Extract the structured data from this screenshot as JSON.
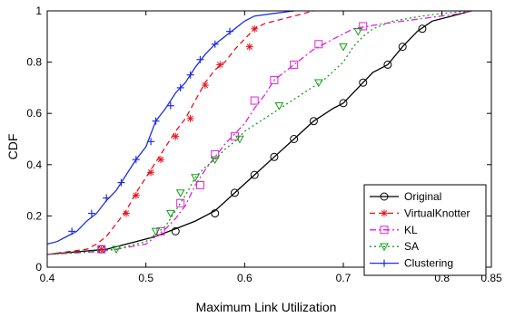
{
  "chart_data": {
    "type": "line",
    "xlabel": "Maximum Link Utilization",
    "ylabel": "CDF",
    "xlim": [
      0.4,
      0.85
    ],
    "ylim": [
      0,
      1
    ],
    "xticks": [
      0.4,
      0.5,
      0.6,
      0.7,
      0.8,
      0.85
    ],
    "xtick_labels": [
      "0.4",
      "0.5",
      "0.6",
      "0.7",
      "0.8",
      "0.85"
    ],
    "yticks": [
      0,
      0.2,
      0.4,
      0.6,
      0.8,
      1
    ],
    "ytick_labels": [
      "0",
      "0.2",
      "0.4",
      "0.6",
      "0.8",
      "1"
    ],
    "grid": false,
    "legend_position": "bottom-right",
    "series": [
      {
        "name": "Original",
        "color": "#000000",
        "dash": "solid",
        "marker": "circle",
        "points": [
          [
            0.4,
            0.05
          ],
          [
            0.43,
            0.06
          ],
          [
            0.46,
            0.07
          ],
          [
            0.49,
            0.1
          ],
          [
            0.51,
            0.12
          ],
          [
            0.53,
            0.15
          ],
          [
            0.55,
            0.18
          ],
          [
            0.57,
            0.22
          ],
          [
            0.59,
            0.29
          ],
          [
            0.61,
            0.36
          ],
          [
            0.63,
            0.43
          ],
          [
            0.65,
            0.5
          ],
          [
            0.67,
            0.57
          ],
          [
            0.69,
            0.62
          ],
          [
            0.7,
            0.64
          ],
          [
            0.71,
            0.68
          ],
          [
            0.72,
            0.72
          ],
          [
            0.73,
            0.76
          ],
          [
            0.745,
            0.79
          ],
          [
            0.76,
            0.86
          ],
          [
            0.775,
            0.92
          ],
          [
            0.79,
            0.96
          ],
          [
            0.81,
            0.98
          ],
          [
            0.83,
            1.0
          ]
        ],
        "markers": [
          [
            0.455,
            0.07
          ],
          [
            0.53,
            0.14
          ],
          [
            0.57,
            0.21
          ],
          [
            0.59,
            0.29
          ],
          [
            0.61,
            0.36
          ],
          [
            0.63,
            0.43
          ],
          [
            0.65,
            0.5
          ],
          [
            0.67,
            0.57
          ],
          [
            0.7,
            0.64
          ],
          [
            0.72,
            0.72
          ],
          [
            0.745,
            0.79
          ],
          [
            0.76,
            0.86
          ],
          [
            0.78,
            0.93
          ]
        ]
      },
      {
        "name": "VirtualKnotter",
        "color": "#e8131c",
        "dash": "6,4",
        "marker": "asterisk",
        "points": [
          [
            0.4,
            0.05
          ],
          [
            0.42,
            0.06
          ],
          [
            0.44,
            0.07
          ],
          [
            0.45,
            0.09
          ],
          [
            0.46,
            0.12
          ],
          [
            0.47,
            0.17
          ],
          [
            0.48,
            0.22
          ],
          [
            0.49,
            0.29
          ],
          [
            0.5,
            0.35
          ],
          [
            0.51,
            0.41
          ],
          [
            0.52,
            0.47
          ],
          [
            0.53,
            0.53
          ],
          [
            0.54,
            0.58
          ],
          [
            0.55,
            0.65
          ],
          [
            0.56,
            0.72
          ],
          [
            0.57,
            0.77
          ],
          [
            0.58,
            0.8
          ],
          [
            0.59,
            0.85
          ],
          [
            0.6,
            0.89
          ],
          [
            0.61,
            0.93
          ],
          [
            0.62,
            0.95
          ],
          [
            0.63,
            0.96
          ],
          [
            0.65,
            0.98
          ],
          [
            0.67,
            1.0
          ]
        ],
        "markers": [
          [
            0.455,
            0.07
          ],
          [
            0.48,
            0.21
          ],
          [
            0.49,
            0.28
          ],
          [
            0.505,
            0.37
          ],
          [
            0.515,
            0.42
          ],
          [
            0.53,
            0.51
          ],
          [
            0.545,
            0.58
          ],
          [
            0.56,
            0.71
          ],
          [
            0.575,
            0.79
          ],
          [
            0.605,
            0.86
          ],
          [
            0.61,
            0.93
          ]
        ]
      },
      {
        "name": "KL",
        "color": "#e020e0",
        "dash": "7,3,2,3",
        "marker": "square",
        "points": [
          [
            0.4,
            0.05
          ],
          [
            0.45,
            0.06
          ],
          [
            0.47,
            0.07
          ],
          [
            0.5,
            0.09
          ],
          [
            0.51,
            0.12
          ],
          [
            0.52,
            0.15
          ],
          [
            0.53,
            0.19
          ],
          [
            0.54,
            0.24
          ],
          [
            0.55,
            0.32
          ],
          [
            0.56,
            0.38
          ],
          [
            0.57,
            0.43
          ],
          [
            0.58,
            0.48
          ],
          [
            0.59,
            0.52
          ],
          [
            0.6,
            0.56
          ],
          [
            0.61,
            0.62
          ],
          [
            0.62,
            0.67
          ],
          [
            0.63,
            0.73
          ],
          [
            0.65,
            0.79
          ],
          [
            0.67,
            0.85
          ],
          [
            0.69,
            0.89
          ],
          [
            0.71,
            0.93
          ],
          [
            0.74,
            0.95
          ],
          [
            0.78,
            0.97
          ],
          [
            0.82,
            0.99
          ],
          [
            0.83,
            1.0
          ]
        ],
        "markers": [
          [
            0.455,
            0.07
          ],
          [
            0.515,
            0.14
          ],
          [
            0.535,
            0.25
          ],
          [
            0.555,
            0.32
          ],
          [
            0.57,
            0.44
          ],
          [
            0.59,
            0.51
          ],
          [
            0.61,
            0.65
          ],
          [
            0.63,
            0.73
          ],
          [
            0.65,
            0.79
          ],
          [
            0.675,
            0.87
          ],
          [
            0.72,
            0.94
          ]
        ]
      },
      {
        "name": "SA",
        "color": "#12a012",
        "dash": "2,3",
        "marker": "triangle",
        "points": [
          [
            0.4,
            0.05
          ],
          [
            0.44,
            0.06
          ],
          [
            0.47,
            0.07
          ],
          [
            0.5,
            0.1
          ],
          [
            0.52,
            0.16
          ],
          [
            0.53,
            0.22
          ],
          [
            0.54,
            0.28
          ],
          [
            0.55,
            0.35
          ],
          [
            0.56,
            0.39
          ],
          [
            0.57,
            0.42
          ],
          [
            0.58,
            0.46
          ],
          [
            0.59,
            0.49
          ],
          [
            0.6,
            0.53
          ],
          [
            0.62,
            0.58
          ],
          [
            0.64,
            0.63
          ],
          [
            0.66,
            0.68
          ],
          [
            0.68,
            0.73
          ],
          [
            0.7,
            0.8
          ],
          [
            0.71,
            0.86
          ],
          [
            0.72,
            0.9
          ],
          [
            0.73,
            0.93
          ],
          [
            0.75,
            0.96
          ],
          [
            0.78,
            0.98
          ],
          [
            0.8,
            0.99
          ],
          [
            0.83,
            1.0
          ]
        ],
        "markers": [
          [
            0.47,
            0.07
          ],
          [
            0.51,
            0.14
          ],
          [
            0.525,
            0.21
          ],
          [
            0.535,
            0.29
          ],
          [
            0.55,
            0.35
          ],
          [
            0.57,
            0.42
          ],
          [
            0.595,
            0.5
          ],
          [
            0.635,
            0.63
          ],
          [
            0.675,
            0.72
          ],
          [
            0.7,
            0.86
          ],
          [
            0.715,
            0.92
          ]
        ]
      },
      {
        "name": "Clustering",
        "color": "#1f2fe0",
        "dash": "solid",
        "marker": "plus",
        "points": [
          [
            0.4,
            0.09
          ],
          [
            0.41,
            0.1
          ],
          [
            0.42,
            0.12
          ],
          [
            0.43,
            0.14
          ],
          [
            0.44,
            0.18
          ],
          [
            0.45,
            0.21
          ],
          [
            0.46,
            0.26
          ],
          [
            0.47,
            0.3
          ],
          [
            0.48,
            0.36
          ],
          [
            0.49,
            0.42
          ],
          [
            0.5,
            0.47
          ],
          [
            0.51,
            0.57
          ],
          [
            0.52,
            0.62
          ],
          [
            0.53,
            0.68
          ],
          [
            0.54,
            0.72
          ],
          [
            0.55,
            0.78
          ],
          [
            0.56,
            0.83
          ],
          [
            0.57,
            0.87
          ],
          [
            0.58,
            0.9
          ],
          [
            0.59,
            0.93
          ],
          [
            0.6,
            0.96
          ],
          [
            0.61,
            0.98
          ],
          [
            0.63,
            0.99
          ],
          [
            0.65,
            1.0
          ]
        ],
        "markers": [
          [
            0.425,
            0.14
          ],
          [
            0.445,
            0.21
          ],
          [
            0.46,
            0.27
          ],
          [
            0.475,
            0.33
          ],
          [
            0.49,
            0.42
          ],
          [
            0.505,
            0.49
          ],
          [
            0.51,
            0.57
          ],
          [
            0.525,
            0.63
          ],
          [
            0.535,
            0.7
          ],
          [
            0.545,
            0.75
          ],
          [
            0.555,
            0.81
          ],
          [
            0.57,
            0.87
          ],
          [
            0.585,
            0.92
          ]
        ]
      }
    ]
  }
}
